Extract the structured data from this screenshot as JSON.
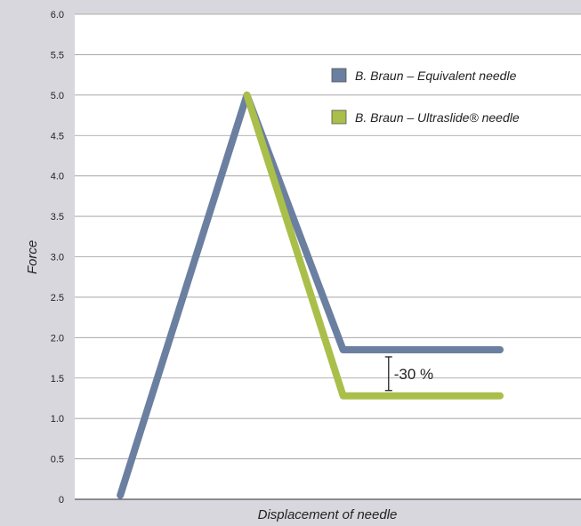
{
  "chart_data": {
    "type": "line",
    "xlabel": "Displacement of needle",
    "ylabel": "Force",
    "ylim": [
      0,
      6
    ],
    "yticks": [
      "0",
      "0.5",
      "1.0",
      "1.5",
      "2.0",
      "2.5",
      "3.0",
      "3.5",
      "4.0",
      "4.5",
      "5.0",
      "5.5",
      "6.0"
    ],
    "grid": true,
    "legend_position": "top-right",
    "series": [
      {
        "name": "B. Braun – Equivalent needle",
        "color": "#6b7fa0",
        "x": [
          0.09,
          0.34,
          0.53,
          0.84
        ],
        "y": [
          0.05,
          5.0,
          1.85,
          1.85
        ]
      },
      {
        "name": "B. Braun – Ultraslide® needle",
        "color": "#a9bf4a",
        "x": [
          0.34,
          0.53,
          0.84
        ],
        "y": [
          5.0,
          1.28,
          1.28
        ]
      }
    ],
    "annotation": {
      "text": "-30 %",
      "x": 0.62,
      "from_y": 1.85,
      "to_y": 1.28
    }
  }
}
